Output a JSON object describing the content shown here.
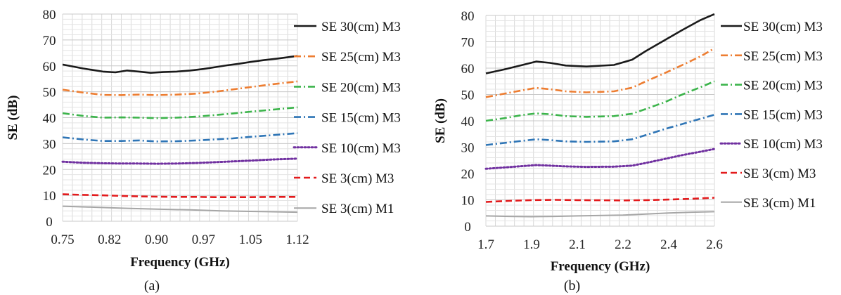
{
  "chart_data": [
    {
      "type": "line",
      "panel_label": "(a)",
      "xlabel": "Frequency (GHz)",
      "ylabel": "SE (dB)",
      "x_ticks": [
        "0.75",
        "0.82",
        "0.90",
        "0.97",
        "1.05",
        "1.12"
      ],
      "y_ticks": [
        "0",
        "10",
        "20",
        "30",
        "40",
        "50",
        "60",
        "70",
        "80"
      ],
      "xlim": [
        0.75,
        1.12
      ],
      "ylim": [
        0,
        80
      ],
      "grid": true,
      "legend_position": "right",
      "series": [
        {
          "name": "SE 30(cm) M3",
          "color": "#1a1a1a",
          "dash": "solid",
          "x": [
            0.75,
            0.78,
            0.81,
            0.83,
            0.85,
            0.87,
            0.89,
            0.91,
            0.93,
            0.95,
            0.97,
            0.99,
            1.01,
            1.03,
            1.05,
            1.07,
            1.09,
            1.12
          ],
          "y": [
            60.5,
            59.0,
            57.8,
            57.5,
            58.2,
            57.8,
            57.3,
            57.6,
            57.8,
            58.2,
            58.8,
            59.5,
            60.2,
            60.8,
            61.5,
            62.2,
            62.8,
            63.8
          ]
        },
        {
          "name": "SE 25(cm) M3",
          "color": "#ed7d31",
          "dash": "dashdot",
          "x": [
            0.75,
            0.78,
            0.81,
            0.84,
            0.87,
            0.9,
            0.93,
            0.96,
            0.99,
            1.02,
            1.05,
            1.08,
            1.12
          ],
          "y": [
            50.8,
            49.7,
            48.8,
            48.7,
            48.9,
            48.7,
            48.9,
            49.3,
            50.0,
            50.9,
            51.8,
            52.8,
            54.0
          ]
        },
        {
          "name": "SE 20(cm) M3",
          "color": "#3cb44b",
          "dash": "dashdot",
          "x": [
            0.75,
            0.78,
            0.81,
            0.84,
            0.87,
            0.9,
            0.93,
            0.96,
            0.99,
            1.02,
            1.05,
            1.08,
            1.12
          ],
          "y": [
            41.7,
            40.7,
            40.0,
            40.1,
            40.0,
            39.8,
            40.0,
            40.4,
            41.0,
            41.6,
            42.3,
            43.0,
            44.0
          ]
        },
        {
          "name": "SE 15(cm) M3",
          "color": "#2e75b6",
          "dash": "dashdot",
          "x": [
            0.75,
            0.78,
            0.81,
            0.84,
            0.87,
            0.9,
            0.93,
            0.96,
            0.99,
            1.02,
            1.05,
            1.08,
            1.12
          ],
          "y": [
            32.4,
            31.6,
            31.0,
            31.0,
            31.2,
            30.8,
            30.9,
            31.2,
            31.6,
            32.0,
            32.6,
            33.2,
            34.0
          ]
        },
        {
          "name": "SE 10(cm) M3",
          "color": "#7030a0",
          "dash": "dot",
          "x": [
            0.75,
            0.78,
            0.81,
            0.84,
            0.87,
            0.9,
            0.93,
            0.96,
            0.99,
            1.02,
            1.05,
            1.08,
            1.12
          ],
          "y": [
            23.0,
            22.6,
            22.4,
            22.3,
            22.3,
            22.2,
            22.3,
            22.5,
            22.8,
            23.1,
            23.4,
            23.8,
            24.2
          ]
        },
        {
          "name": "SE 3(cm) M3",
          "color": "#e31a1c",
          "dash": "dash",
          "x": [
            0.75,
            0.78,
            0.81,
            0.84,
            0.87,
            0.9,
            0.93,
            0.96,
            0.99,
            1.02,
            1.05,
            1.08,
            1.12
          ],
          "y": [
            10.4,
            10.2,
            10.0,
            9.8,
            9.6,
            9.5,
            9.4,
            9.4,
            9.3,
            9.3,
            9.3,
            9.4,
            9.4
          ]
        },
        {
          "name": "SE 3(cm) M1",
          "color": "#a6a6a6",
          "dash": "solid",
          "x": [
            0.75,
            0.8,
            0.85,
            0.9,
            0.95,
            1.0,
            1.05,
            1.12
          ],
          "y": [
            5.8,
            5.4,
            5.0,
            4.7,
            4.4,
            4.0,
            3.8,
            3.5
          ]
        }
      ]
    },
    {
      "type": "line",
      "panel_label": "(b)",
      "xlabel": "Frequency (GHz)",
      "ylabel": "SE (dB)",
      "x_ticks": [
        "1.7",
        "1.9",
        "2.1",
        "2.2",
        "2.4",
        "2.6"
      ],
      "y_ticks": [
        "0",
        "10",
        "20",
        "30",
        "40",
        "50",
        "60",
        "70",
        "80"
      ],
      "xlim": [
        1.7,
        2.6
      ],
      "ylim": [
        0,
        80
      ],
      "grid": true,
      "legend_position": "right",
      "series": [
        {
          "name": "SE 30(cm) M3",
          "color": "#1a1a1a",
          "dash": "solid",
          "x": [
            1.7,
            1.78,
            1.86,
            1.92,
            1.98,
            2.05,
            2.12,
            2.18,
            2.24,
            2.3,
            2.38,
            2.46,
            2.54,
            2.6
          ],
          "y": [
            58.0,
            59.5,
            61.2,
            62.5,
            62.0,
            61.0,
            60.6,
            61.2,
            63.2,
            66.5,
            70.5,
            74.5,
            78.3,
            80.5
          ]
        },
        {
          "name": "SE 25(cm) M3",
          "color": "#ed7d31",
          "dash": "dashdot",
          "x": [
            1.7,
            1.78,
            1.86,
            1.92,
            1.98,
            2.05,
            2.12,
            2.18,
            2.24,
            2.3,
            2.38,
            2.46,
            2.54,
            2.6
          ],
          "y": [
            49.0,
            50.3,
            51.6,
            52.5,
            52.0,
            51.2,
            50.8,
            51.2,
            52.6,
            55.0,
            58.0,
            61.2,
            64.5,
            67.5
          ]
        },
        {
          "name": "SE 20(cm) M3",
          "color": "#3cb44b",
          "dash": "dashdot",
          "x": [
            1.7,
            1.78,
            1.86,
            1.92,
            1.98,
            2.05,
            2.12,
            2.18,
            2.24,
            2.3,
            2.38,
            2.46,
            2.54,
            2.6
          ],
          "y": [
            40.0,
            41.0,
            42.2,
            42.8,
            42.5,
            41.8,
            41.5,
            41.8,
            42.7,
            44.5,
            47.0,
            50.0,
            52.8,
            55.0
          ]
        },
        {
          "name": "SE 15(cm) M3",
          "color": "#2e75b6",
          "dash": "dashdot",
          "x": [
            1.7,
            1.78,
            1.86,
            1.92,
            1.98,
            2.05,
            2.12,
            2.18,
            2.24,
            2.3,
            2.38,
            2.46,
            2.54,
            2.6
          ],
          "y": [
            30.8,
            31.6,
            32.4,
            33.0,
            32.7,
            32.2,
            32.0,
            32.2,
            33.0,
            34.6,
            36.8,
            38.8,
            40.8,
            42.3
          ]
        },
        {
          "name": "SE 10(cm) M3",
          "color": "#7030a0",
          "dash": "dot",
          "x": [
            1.7,
            1.78,
            1.86,
            1.92,
            1.98,
            2.05,
            2.12,
            2.18,
            2.24,
            2.3,
            2.38,
            2.46,
            2.54,
            2.6
          ],
          "y": [
            21.8,
            22.3,
            22.8,
            23.2,
            23.0,
            22.7,
            22.5,
            22.6,
            23.0,
            24.0,
            25.5,
            27.0,
            28.3,
            29.3
          ]
        },
        {
          "name": "SE 3(cm) M3",
          "color": "#e31a1c",
          "dash": "dash",
          "x": [
            1.7,
            1.8,
            1.9,
            2.0,
            2.1,
            2.2,
            2.3,
            2.4,
            2.5,
            2.6
          ],
          "y": [
            9.2,
            9.6,
            9.9,
            10.0,
            9.9,
            9.8,
            9.9,
            10.1,
            10.4,
            10.8
          ]
        },
        {
          "name": "SE 3(cm) M1",
          "color": "#a6a6a6",
          "dash": "solid",
          "x": [
            1.7,
            1.8,
            1.9,
            2.0,
            2.1,
            2.2,
            2.3,
            2.4,
            2.5,
            2.6
          ],
          "y": [
            3.9,
            3.7,
            3.6,
            3.7,
            3.9,
            4.2,
            4.6,
            5.0,
            5.3,
            5.5
          ]
        }
      ]
    }
  ]
}
